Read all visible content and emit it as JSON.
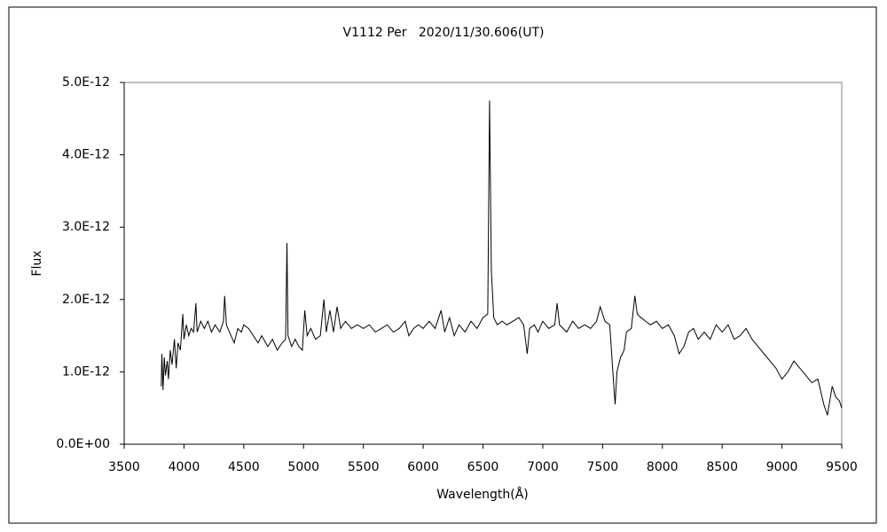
{
  "chart_data": {
    "type": "line",
    "title": "V1112 Per   2020/11/30.606(UT)",
    "x_label": "Wavelength(Å)",
    "y_label": "Flux",
    "color": "#000000",
    "xlim": [
      3500,
      9500
    ],
    "xticks": [
      3500,
      4000,
      4500,
      5000,
      5500,
      6000,
      6500,
      7000,
      7500,
      8000,
      8500,
      9000,
      9500
    ],
    "ylim": [
      0,
      5e-12
    ],
    "yticks": [
      {
        "value": 0,
        "label": "0.0E+00"
      },
      {
        "value": 1e-12,
        "label": "1.0E-12"
      },
      {
        "value": 2e-12,
        "label": "2.0E-12"
      },
      {
        "value": 3e-12,
        "label": "3.0E-12"
      },
      {
        "value": 4e-12,
        "label": "4.0E-12"
      },
      {
        "value": 5e-12,
        "label": "5.0E-12"
      }
    ],
    "x": [
      3810,
      3815,
      3825,
      3835,
      3845,
      3860,
      3870,
      3885,
      3900,
      3920,
      3935,
      3950,
      3970,
      3990,
      4000,
      4020,
      4040,
      4060,
      4080,
      4100,
      4110,
      4140,
      4170,
      4200,
      4230,
      4260,
      4300,
      4330,
      4340,
      4355,
      4380,
      4420,
      4450,
      4480,
      4500,
      4540,
      4580,
      4620,
      4650,
      4700,
      4740,
      4780,
      4820,
      4850,
      4861,
      4870,
      4900,
      4930,
      4960,
      4990,
      5010,
      5030,
      5060,
      5100,
      5140,
      5170,
      5190,
      5220,
      5250,
      5280,
      5310,
      5350,
      5400,
      5450,
      5500,
      5550,
      5600,
      5650,
      5700,
      5750,
      5800,
      5850,
      5880,
      5920,
      5960,
      6000,
      6050,
      6100,
      6150,
      6180,
      6220,
      6260,
      6300,
      6350,
      6400,
      6450,
      6500,
      6540,
      6555,
      6570,
      6590,
      6620,
      6660,
      6700,
      6750,
      6800,
      6840,
      6870,
      6890,
      6930,
      6960,
      7000,
      7050,
      7100,
      7120,
      7140,
      7200,
      7250,
      7300,
      7350,
      7400,
      7450,
      7480,
      7520,
      7560,
      7590,
      7605,
      7620,
      7650,
      7680,
      7700,
      7740,
      7770,
      7790,
      7820,
      7860,
      7900,
      7950,
      8000,
      8050,
      8100,
      8140,
      8180,
      8220,
      8260,
      8300,
      8350,
      8400,
      8450,
      8500,
      8550,
      8600,
      8650,
      8700,
      8750,
      8800,
      8850,
      8900,
      8950,
      9000,
      9050,
      9100,
      9150,
      9200,
      9250,
      9300,
      9350,
      9380,
      9420,
      9450,
      9480,
      9500
    ],
    "values": [
      8e-13,
      1.25e-12,
      7.5e-13,
      1.2e-12,
      9.5e-13,
      1.15e-12,
      9e-13,
      1.3e-12,
      1.1e-12,
      1.45e-12,
      1.05e-12,
      1.4e-12,
      1.3e-12,
      1.8e-12,
      1.45e-12,
      1.65e-12,
      1.5e-12,
      1.6e-12,
      1.55e-12,
      1.95e-12,
      1.55e-12,
      1.7e-12,
      1.6e-12,
      1.7e-12,
      1.55e-12,
      1.65e-12,
      1.55e-12,
      1.7e-12,
      2.05e-12,
      1.65e-12,
      1.55e-12,
      1.4e-12,
      1.6e-12,
      1.55e-12,
      1.65e-12,
      1.6e-12,
      1.5e-12,
      1.4e-12,
      1.5e-12,
      1.35e-12,
      1.45e-12,
      1.3e-12,
      1.4e-12,
      1.45e-12,
      2.78e-12,
      1.5e-12,
      1.35e-12,
      1.45e-12,
      1.35e-12,
      1.3e-12,
      1.85e-12,
      1.5e-12,
      1.6e-12,
      1.45e-12,
      1.5e-12,
      2e-12,
      1.55e-12,
      1.85e-12,
      1.55e-12,
      1.9e-12,
      1.6e-12,
      1.7e-12,
      1.6e-12,
      1.65e-12,
      1.6e-12,
      1.65e-12,
      1.55e-12,
      1.6e-12,
      1.65e-12,
      1.55e-12,
      1.6e-12,
      1.7e-12,
      1.5e-12,
      1.6e-12,
      1.65e-12,
      1.6e-12,
      1.7e-12,
      1.6e-12,
      1.85e-12,
      1.55e-12,
      1.75e-12,
      1.5e-12,
      1.65e-12,
      1.55e-12,
      1.7e-12,
      1.6e-12,
      1.75e-12,
      1.8e-12,
      4.75e-12,
      2.4e-12,
      1.75e-12,
      1.65e-12,
      1.7e-12,
      1.65e-12,
      1.7e-12,
      1.75e-12,
      1.65e-12,
      1.25e-12,
      1.6e-12,
      1.65e-12,
      1.55e-12,
      1.7e-12,
      1.6e-12,
      1.65e-12,
      1.95e-12,
      1.65e-12,
      1.55e-12,
      1.7e-12,
      1.6e-12,
      1.65e-12,
      1.6e-12,
      1.7e-12,
      1.9e-12,
      1.7e-12,
      1.65e-12,
      9e-13,
      5.5e-13,
      1e-12,
      1.2e-12,
      1.3e-12,
      1.55e-12,
      1.6e-12,
      2.05e-12,
      1.8e-12,
      1.75e-12,
      1.7e-12,
      1.65e-12,
      1.7e-12,
      1.6e-12,
      1.65e-12,
      1.5e-12,
      1.25e-12,
      1.35e-12,
      1.55e-12,
      1.6e-12,
      1.45e-12,
      1.55e-12,
      1.45e-12,
      1.65e-12,
      1.55e-12,
      1.65e-12,
      1.45e-12,
      1.5e-12,
      1.6e-12,
      1.45e-12,
      1.35e-12,
      1.25e-12,
      1.15e-12,
      1.05e-12,
      9e-13,
      1e-12,
      1.15e-12,
      1.05e-12,
      9.5e-13,
      8.5e-13,
      9e-13,
      5.5e-13,
      4e-13,
      8e-13,
      6.5e-13,
      6e-13,
      5e-13
    ]
  }
}
